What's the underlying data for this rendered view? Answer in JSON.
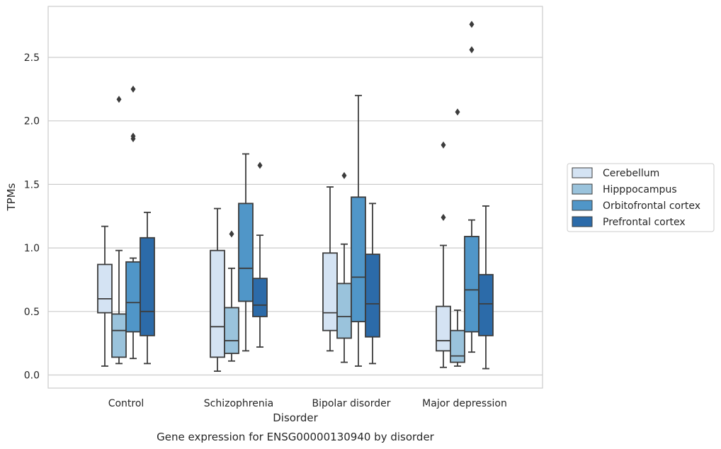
{
  "chart_data": {
    "type": "box",
    "title": "",
    "caption": "Gene expression for ENSG00000130940 by disorder",
    "xlabel": "Disorder",
    "ylabel": "TPMs",
    "ylim": [
      -0.1,
      2.9
    ],
    "yticks": [
      0.0,
      0.5,
      1.0,
      1.5,
      2.0,
      2.5
    ],
    "ytick_labels": [
      "0.0",
      "0.5",
      "1.0",
      "1.5",
      "2.0",
      "2.5"
    ],
    "grid": "horizontal",
    "legend_position": "right",
    "categories": [
      "Control",
      "Schizophrenia",
      "Bipolar disorder",
      "Major depression"
    ],
    "series": [
      {
        "name": "Cerebellum",
        "color": "#d4e3f3",
        "boxes": [
          {
            "whisker_low": 0.07,
            "q1": 0.49,
            "median": 0.6,
            "q3": 0.87,
            "whisker_high": 1.17,
            "outliers": []
          },
          {
            "whisker_low": 0.03,
            "q1": 0.14,
            "median": 0.38,
            "q3": 0.98,
            "whisker_high": 1.31,
            "outliers": []
          },
          {
            "whisker_low": 0.19,
            "q1": 0.35,
            "median": 0.49,
            "q3": 0.96,
            "whisker_high": 1.48,
            "outliers": []
          },
          {
            "whisker_low": 0.06,
            "q1": 0.19,
            "median": 0.27,
            "q3": 0.54,
            "whisker_high": 1.02,
            "outliers": [
              1.24,
              1.81
            ]
          }
        ]
      },
      {
        "name": "Hipppocampus",
        "color": "#9ac3dc",
        "boxes": [
          {
            "whisker_low": 0.09,
            "q1": 0.14,
            "median": 0.35,
            "q3": 0.48,
            "whisker_high": 0.98,
            "outliers": [
              2.17
            ]
          },
          {
            "whisker_low": 0.11,
            "q1": 0.17,
            "median": 0.27,
            "q3": 0.53,
            "whisker_high": 0.84,
            "outliers": [
              1.11
            ]
          },
          {
            "whisker_low": 0.1,
            "q1": 0.29,
            "median": 0.46,
            "q3": 0.72,
            "whisker_high": 1.03,
            "outliers": [
              1.57
            ]
          },
          {
            "whisker_low": 0.07,
            "q1": 0.1,
            "median": 0.15,
            "q3": 0.35,
            "whisker_high": 0.51,
            "outliers": [
              2.07
            ]
          }
        ]
      },
      {
        "name": "Orbitofrontal cortex",
        "color": "#5096c8",
        "boxes": [
          {
            "whisker_low": 0.13,
            "q1": 0.34,
            "median": 0.57,
            "q3": 0.89,
            "whisker_high": 0.92,
            "outliers": [
              1.86,
              1.88,
              2.25
            ]
          },
          {
            "whisker_low": 0.19,
            "q1": 0.58,
            "median": 0.84,
            "q3": 1.35,
            "whisker_high": 1.74,
            "outliers": []
          },
          {
            "whisker_low": 0.07,
            "q1": 0.42,
            "median": 0.77,
            "q3": 1.4,
            "whisker_high": 2.2,
            "outliers": []
          },
          {
            "whisker_low": 0.18,
            "q1": 0.34,
            "median": 0.67,
            "q3": 1.09,
            "whisker_high": 1.22,
            "outliers": [
              2.56,
              2.76
            ]
          }
        ]
      },
      {
        "name": "Prefrontal cortex",
        "color": "#2c6ba9",
        "boxes": [
          {
            "whisker_low": 0.09,
            "q1": 0.31,
            "median": 0.5,
            "q3": 1.08,
            "whisker_high": 1.28,
            "outliers": []
          },
          {
            "whisker_low": 0.22,
            "q1": 0.46,
            "median": 0.55,
            "q3": 0.76,
            "whisker_high": 1.1,
            "outliers": [
              1.65
            ]
          },
          {
            "whisker_low": 0.09,
            "q1": 0.3,
            "median": 0.56,
            "q3": 0.95,
            "whisker_high": 1.35,
            "outliers": []
          },
          {
            "whisker_low": 0.05,
            "q1": 0.31,
            "median": 0.56,
            "q3": 0.79,
            "whisker_high": 1.33,
            "outliers": []
          }
        ]
      }
    ]
  }
}
